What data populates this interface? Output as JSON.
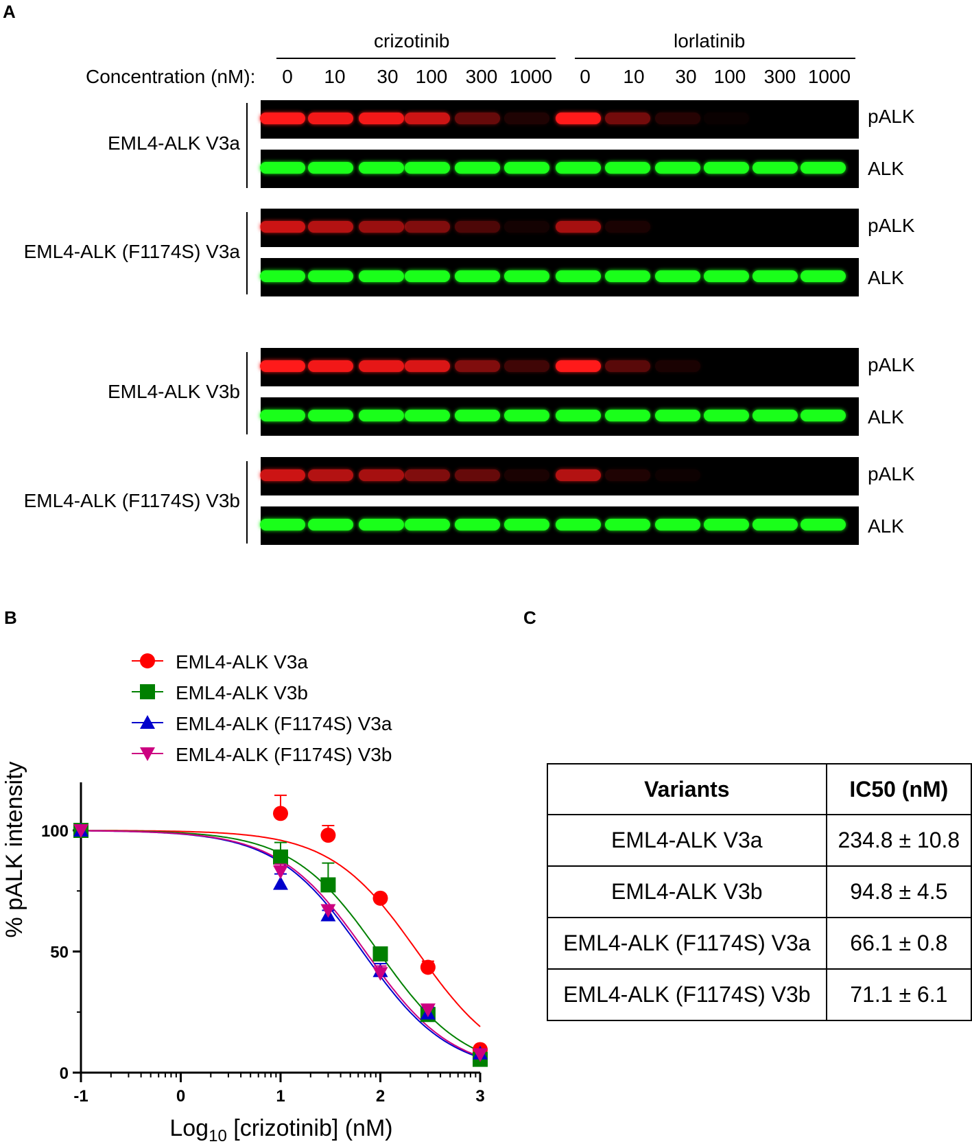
{
  "panels": {
    "a": "A",
    "b": "B",
    "c": "C"
  },
  "blot": {
    "drugs": [
      "crizotinib",
      "lorlatinib"
    ],
    "concentration_label": "Concentration (nM):",
    "concentrations": [
      "0",
      "10",
      "30",
      "100",
      "300",
      "1000",
      "0",
      "10",
      "30",
      "100",
      "300",
      "1000"
    ],
    "samples": [
      {
        "label": "EML4-ALK V3a",
        "pALK": [
          1.0,
          0.95,
          0.95,
          0.8,
          0.4,
          0.12,
          1.0,
          0.45,
          0.15,
          0.04,
          0,
          0
        ],
        "ALK": [
          1,
          1,
          1,
          1,
          1,
          1,
          1,
          1,
          1,
          1,
          1,
          1
        ]
      },
      {
        "label": "EML4-ALK (F1174S) V3a",
        "pALK": [
          0.8,
          0.7,
          0.6,
          0.5,
          0.3,
          0.08,
          0.65,
          0.1,
          0,
          0,
          0,
          0
        ],
        "ALK": [
          1,
          1,
          1,
          1,
          1,
          1,
          1,
          1,
          1,
          1,
          1,
          1
        ]
      },
      {
        "label": "EML4-ALK V3b",
        "pALK": [
          1.0,
          0.95,
          0.9,
          0.85,
          0.5,
          0.25,
          1.0,
          0.35,
          0.1,
          0,
          0,
          0
        ],
        "ALK": [
          1,
          1,
          1,
          1,
          1,
          1,
          1,
          1,
          1,
          1,
          1,
          1
        ]
      },
      {
        "label": "EML4-ALK (F1174S) V3b",
        "pALK": [
          0.8,
          0.7,
          0.65,
          0.5,
          0.4,
          0.1,
          0.7,
          0.12,
          0.05,
          0,
          0,
          0
        ],
        "ALK": [
          1,
          1,
          1,
          1,
          1,
          1,
          1,
          1,
          1,
          1,
          1,
          1
        ]
      }
    ],
    "band_labels": {
      "phospho": "pALK",
      "total": "ALK"
    },
    "colors": {
      "phospho": "#ff1a1a",
      "total": "#1aff1a",
      "background": "#000000"
    }
  },
  "chart_data": {
    "type": "line",
    "xlabel_prefix": "Log",
    "xlabel_sub": "10",
    "xlabel_suffix": " [crizotinib] (nM)",
    "ylabel": "% pALK intensity",
    "xlim": [
      -1,
      3
    ],
    "ylim": [
      0,
      120
    ],
    "x_ticks": [
      "-1",
      "0",
      "1",
      "2",
      "3"
    ],
    "y_ticks": [
      "0",
      "50",
      "100"
    ],
    "series": [
      {
        "name": "EML4-ALK V3a",
        "color": "#ff0000",
        "marker": "circle",
        "x": [
          -1,
          1,
          1.477,
          2,
          2.477,
          3
        ],
        "y": [
          100,
          107,
          98,
          72,
          43.5,
          9.5
        ],
        "err": [
          0,
          7.5,
          4,
          0,
          2.5,
          0
        ],
        "ic50_log": 2.37
      },
      {
        "name": "EML4-ALK V3b",
        "color": "#008000",
        "marker": "square",
        "x": [
          -1,
          1,
          1.477,
          2,
          2.477,
          3
        ],
        "y": [
          100,
          89,
          77.5,
          49,
          24,
          5.5
        ],
        "err": [
          0,
          6,
          9,
          0,
          2.5,
          0
        ],
        "ic50_log": 1.98
      },
      {
        "name": "EML4-ALK (F1174S) V3a",
        "color": "#0000cc",
        "marker": "triangle",
        "x": [
          -1,
          1,
          1.477,
          2,
          2.477,
          3
        ],
        "y": [
          100,
          78,
          65,
          42,
          24.5,
          8
        ],
        "err": [
          0,
          4,
          2,
          3,
          2.5,
          0
        ],
        "ic50_log": 1.82
      },
      {
        "name": "EML4-ALK (F1174S) V3b",
        "color": "#cc0080",
        "marker": "triangle-down",
        "x": [
          -1,
          1,
          1.477,
          2,
          2.477,
          3
        ],
        "y": [
          100,
          83,
          67,
          41,
          26,
          7.5
        ],
        "err": [
          0,
          3,
          2,
          3,
          2,
          0
        ],
        "ic50_log": 1.85
      }
    ]
  },
  "ic50_table": {
    "headers": [
      "Variants",
      "IC50 (nM)"
    ],
    "rows": [
      [
        "EML4-ALK V3a",
        "234.8 ± 10.8"
      ],
      [
        "EML4-ALK V3b",
        "94.8 ± 4.5"
      ],
      [
        "EML4-ALK (F1174S) V3a",
        "66.1 ± 0.8"
      ],
      [
        "EML4-ALK (F1174S) V3b",
        "71.1 ± 6.1"
      ]
    ]
  }
}
